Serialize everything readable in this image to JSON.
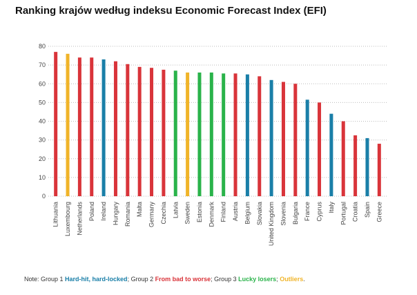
{
  "chart_data": {
    "type": "bar",
    "title": "Ranking krajów według indeksu Economic Forecast Index (EFI)",
    "categories": [
      "Lithuania",
      "Luxembourg",
      "Netherlands",
      "Poland",
      "Ireland",
      "Hungary",
      "Romania",
      "Malta",
      "Germany",
      "Czechia",
      "Latvia",
      "Sweden",
      "Estonia",
      "Denmark",
      "Finland",
      "Austria",
      "Belgium",
      "Slovakia",
      "United Kingdom",
      "Slovenia",
      "Bulgaria",
      "France",
      "Cyprus",
      "Italy",
      "Portugal",
      "Croatia",
      "Spain",
      "Greece"
    ],
    "values": [
      77,
      76,
      74,
      74,
      73,
      72,
      70.5,
      69,
      68.5,
      67.5,
      67,
      66,
      66,
      66,
      65.5,
      65.5,
      65,
      64,
      62,
      61,
      60,
      51.5,
      50,
      44,
      40,
      32.5,
      31,
      28
    ],
    "colors": [
      "#d9343a",
      "#f0b429",
      "#d9343a",
      "#d9343a",
      "#1a7fa8",
      "#d9343a",
      "#d9343a",
      "#d9343a",
      "#d9343a",
      "#d9343a",
      "#2ab34a",
      "#f0b429",
      "#2ab34a",
      "#2ab34a",
      "#2ab34a",
      "#d9343a",
      "#1a7fa8",
      "#d9343a",
      "#1a7fa8",
      "#d9343a",
      "#d9343a",
      "#1a7fa8",
      "#d9343a",
      "#1a7fa8",
      "#d9343a",
      "#d9343a",
      "#1a7fa8",
      "#d9343a"
    ],
    "ylim": [
      0,
      80
    ],
    "yticks": [
      0,
      10,
      20,
      30,
      40,
      50,
      60,
      70,
      80
    ],
    "grid": true,
    "note": [
      {
        "text": "Note: Group 1 "
      },
      {
        "text": "Hard-hit, hard-locked",
        "color": "#1a7fa8"
      },
      {
        "text": "; Group 2 "
      },
      {
        "text": "From bad to worse",
        "color": "#d9343a"
      },
      {
        "text": "; Group 3 "
      },
      {
        "text": "Lucky losers",
        "color": "#2ab34a"
      },
      {
        "text": "; "
      },
      {
        "text": "Outliers",
        "color": "#f0b429"
      },
      {
        "text": "."
      }
    ]
  }
}
